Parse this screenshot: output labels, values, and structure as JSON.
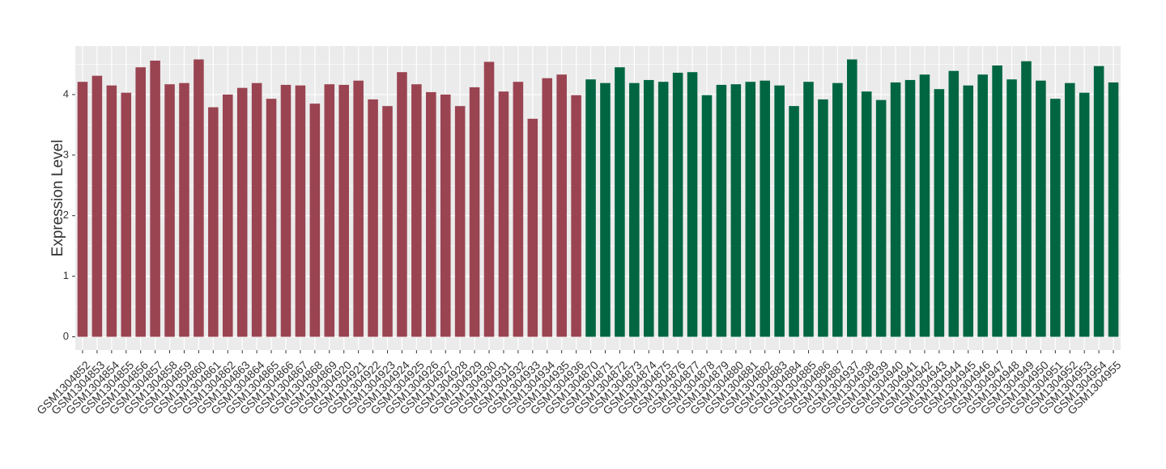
{
  "chart_data": {
    "type": "bar",
    "y_label": "Expression Level",
    "categories": [
      "GSM1304852",
      "GSM1304853",
      "GSM1304854",
      "GSM1304855",
      "GSM1304856",
      "GSM1304857",
      "GSM1304858",
      "GSM1304859",
      "GSM1304860",
      "GSM1304861",
      "GSM1304862",
      "GSM1304863",
      "GSM1304864",
      "GSM1304865",
      "GSM1304866",
      "GSM1304867",
      "GSM1304868",
      "GSM1304869",
      "GSM1304920",
      "GSM1304921",
      "GSM1304922",
      "GSM1304923",
      "GSM1304924",
      "GSM1304925",
      "GSM1304926",
      "GSM1304927",
      "GSM1304928",
      "GSM1304929",
      "GSM1304930",
      "GSM1304931",
      "GSM1304932",
      "GSM1304933",
      "GSM1304934",
      "GSM1304935",
      "GSM1304936",
      "GSM1304870",
      "GSM1304871",
      "GSM1304872",
      "GSM1304873",
      "GSM1304874",
      "GSM1304875",
      "GSM1304876",
      "GSM1304877",
      "GSM1304878",
      "GSM1304879",
      "GSM1304880",
      "GSM1304881",
      "GSM1304882",
      "GSM1304883",
      "GSM1304884",
      "GSM1304885",
      "GSM1304886",
      "GSM1304887",
      "GSM1304937",
      "GSM1304938",
      "GSM1304939",
      "GSM1304940",
      "GSM1304941",
      "GSM1304942",
      "GSM1304943",
      "GSM1304944",
      "GSM1304945",
      "GSM1304946",
      "GSM1304947",
      "GSM1304948",
      "GSM1304949",
      "GSM1304950",
      "GSM1304951",
      "GSM1304952",
      "GSM1304953",
      "GSM1304954",
      "GSM1304955"
    ],
    "values": [
      4.21,
      4.31,
      4.15,
      4.03,
      4.45,
      4.56,
      4.17,
      4.19,
      4.58,
      3.79,
      4.0,
      4.11,
      4.19,
      3.93,
      4.16,
      4.15,
      3.85,
      4.17,
      4.16,
      4.23,
      3.92,
      3.81,
      4.37,
      4.17,
      4.04,
      4.0,
      3.81,
      4.12,
      4.54,
      4.05,
      4.21,
      3.6,
      4.27,
      4.33,
      3.99,
      4.25,
      4.19,
      4.45,
      4.19,
      4.24,
      4.21,
      4.36,
      4.37,
      3.99,
      4.16,
      4.17,
      4.21,
      4.23,
      4.15,
      3.81,
      4.21,
      3.92,
      4.19,
      4.58,
      4.05,
      3.91,
      4.2,
      4.24,
      4.33,
      4.09,
      4.39,
      4.15,
      4.33,
      4.48,
      4.25,
      4.55,
      4.23,
      3.93,
      4.19,
      4.03,
      4.47,
      4.2
    ],
    "colors": [
      "#9a4452",
      "#9a4452",
      "#9a4452",
      "#9a4452",
      "#9a4452",
      "#9a4452",
      "#9a4452",
      "#9a4452",
      "#9a4452",
      "#9a4452",
      "#9a4452",
      "#9a4452",
      "#9a4452",
      "#9a4452",
      "#9a4452",
      "#9a4452",
      "#9a4452",
      "#9a4452",
      "#9a4452",
      "#9a4452",
      "#9a4452",
      "#9a4452",
      "#9a4452",
      "#9a4452",
      "#9a4452",
      "#9a4452",
      "#9a4452",
      "#9a4452",
      "#9a4452",
      "#9a4452",
      "#9a4452",
      "#9a4452",
      "#9a4452",
      "#9a4452",
      "#9a4452",
      "#006642",
      "#006642",
      "#006642",
      "#006642",
      "#006642",
      "#006642",
      "#006642",
      "#006642",
      "#006642",
      "#006642",
      "#006642",
      "#006642",
      "#006642",
      "#006642",
      "#006642",
      "#006642",
      "#006642",
      "#006642",
      "#006642",
      "#006642",
      "#006642",
      "#006642",
      "#006642",
      "#006642",
      "#006642",
      "#006642",
      "#006642",
      "#006642",
      "#006642",
      "#006642",
      "#006642",
      "#006642",
      "#006642",
      "#006642",
      "#006642",
      "#006642",
      "#006642"
    ],
    "ylim": [
      -0.22,
      4.8
    ],
    "yticks": [
      0,
      1,
      2,
      3,
      4
    ],
    "grid": true
  }
}
